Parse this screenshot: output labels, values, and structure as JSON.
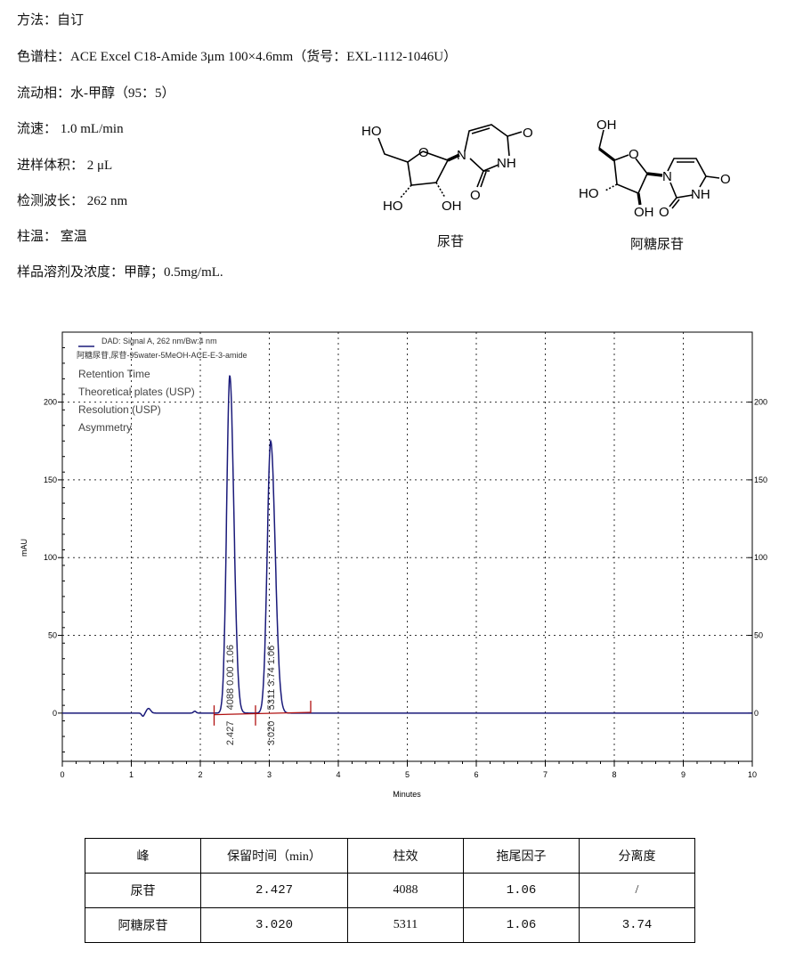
{
  "method": {
    "lines": [
      "方法：自订",
      "色谱柱：ACE Excel C18-Amide 3μm 100×4.6mm（货号：EXL-1112-1046U）",
      "流动相：水-甲醇（95：5）",
      "流速：  1.0 mL/min",
      "进样体积：  2 μL",
      "检测波长：  262 nm",
      "柱温：  室温",
      "样品溶剂及浓度：甲醇；0.5mg/mL."
    ]
  },
  "structures": [
    {
      "name": "尿苷"
    },
    {
      "name": "阿糖尿苷"
    }
  ],
  "chart_data": {
    "type": "line",
    "legend": {
      "line1": "DAD: Signal A, 262 nm/Bw:4 nm",
      "line2": "阿糖尿苷,尿苷-95water-5MeOH-ACE-E-3-amide",
      "color": "#1a1a7a",
      "placement": "top-left"
    },
    "annotation_labels": [
      "Retention Time",
      "Theoretical plates (USP)",
      "Resolution (USP)",
      "Asymmetry"
    ],
    "xlabel": "Minutes",
    "ylabel": "mAU",
    "xlim": [
      0,
      10
    ],
    "ylim": [
      -31,
      245
    ],
    "x_ticks": [
      "0",
      "1",
      "2",
      "3",
      "4",
      "5",
      "6",
      "7",
      "8",
      "9",
      "10"
    ],
    "y_ticks": [
      "0",
      "50",
      "100",
      "150",
      "200"
    ],
    "right_y_ticks": [
      "0",
      "50",
      "100",
      "150",
      "200"
    ],
    "grid": true,
    "line_color": "#1a1a7a",
    "baseline_color": "#b01010",
    "peaks": [
      {
        "rt": 2.427,
        "height": 217,
        "rt_label": "2.427",
        "info_label": "4088  0.00  1.06"
      },
      {
        "rt": 3.02,
        "height": 175,
        "rt_label": "3.020",
        "info_label": "5311  3.74  1.06"
      }
    ],
    "minor_features": [
      {
        "rt": 1.25,
        "height": 3
      }
    ],
    "integration_marks": [
      2.2,
      2.8,
      3.6
    ]
  },
  "results_table": {
    "headers": [
      "峰",
      "保留时间（min）",
      "柱效",
      "拖尾因子",
      "分离度"
    ],
    "rows": [
      [
        "尿苷",
        "2.427",
        "4088",
        "1.06",
        "/"
      ],
      [
        "阿糖尿苷",
        "3.020",
        "5311",
        "1.06",
        "3.74"
      ]
    ]
  }
}
